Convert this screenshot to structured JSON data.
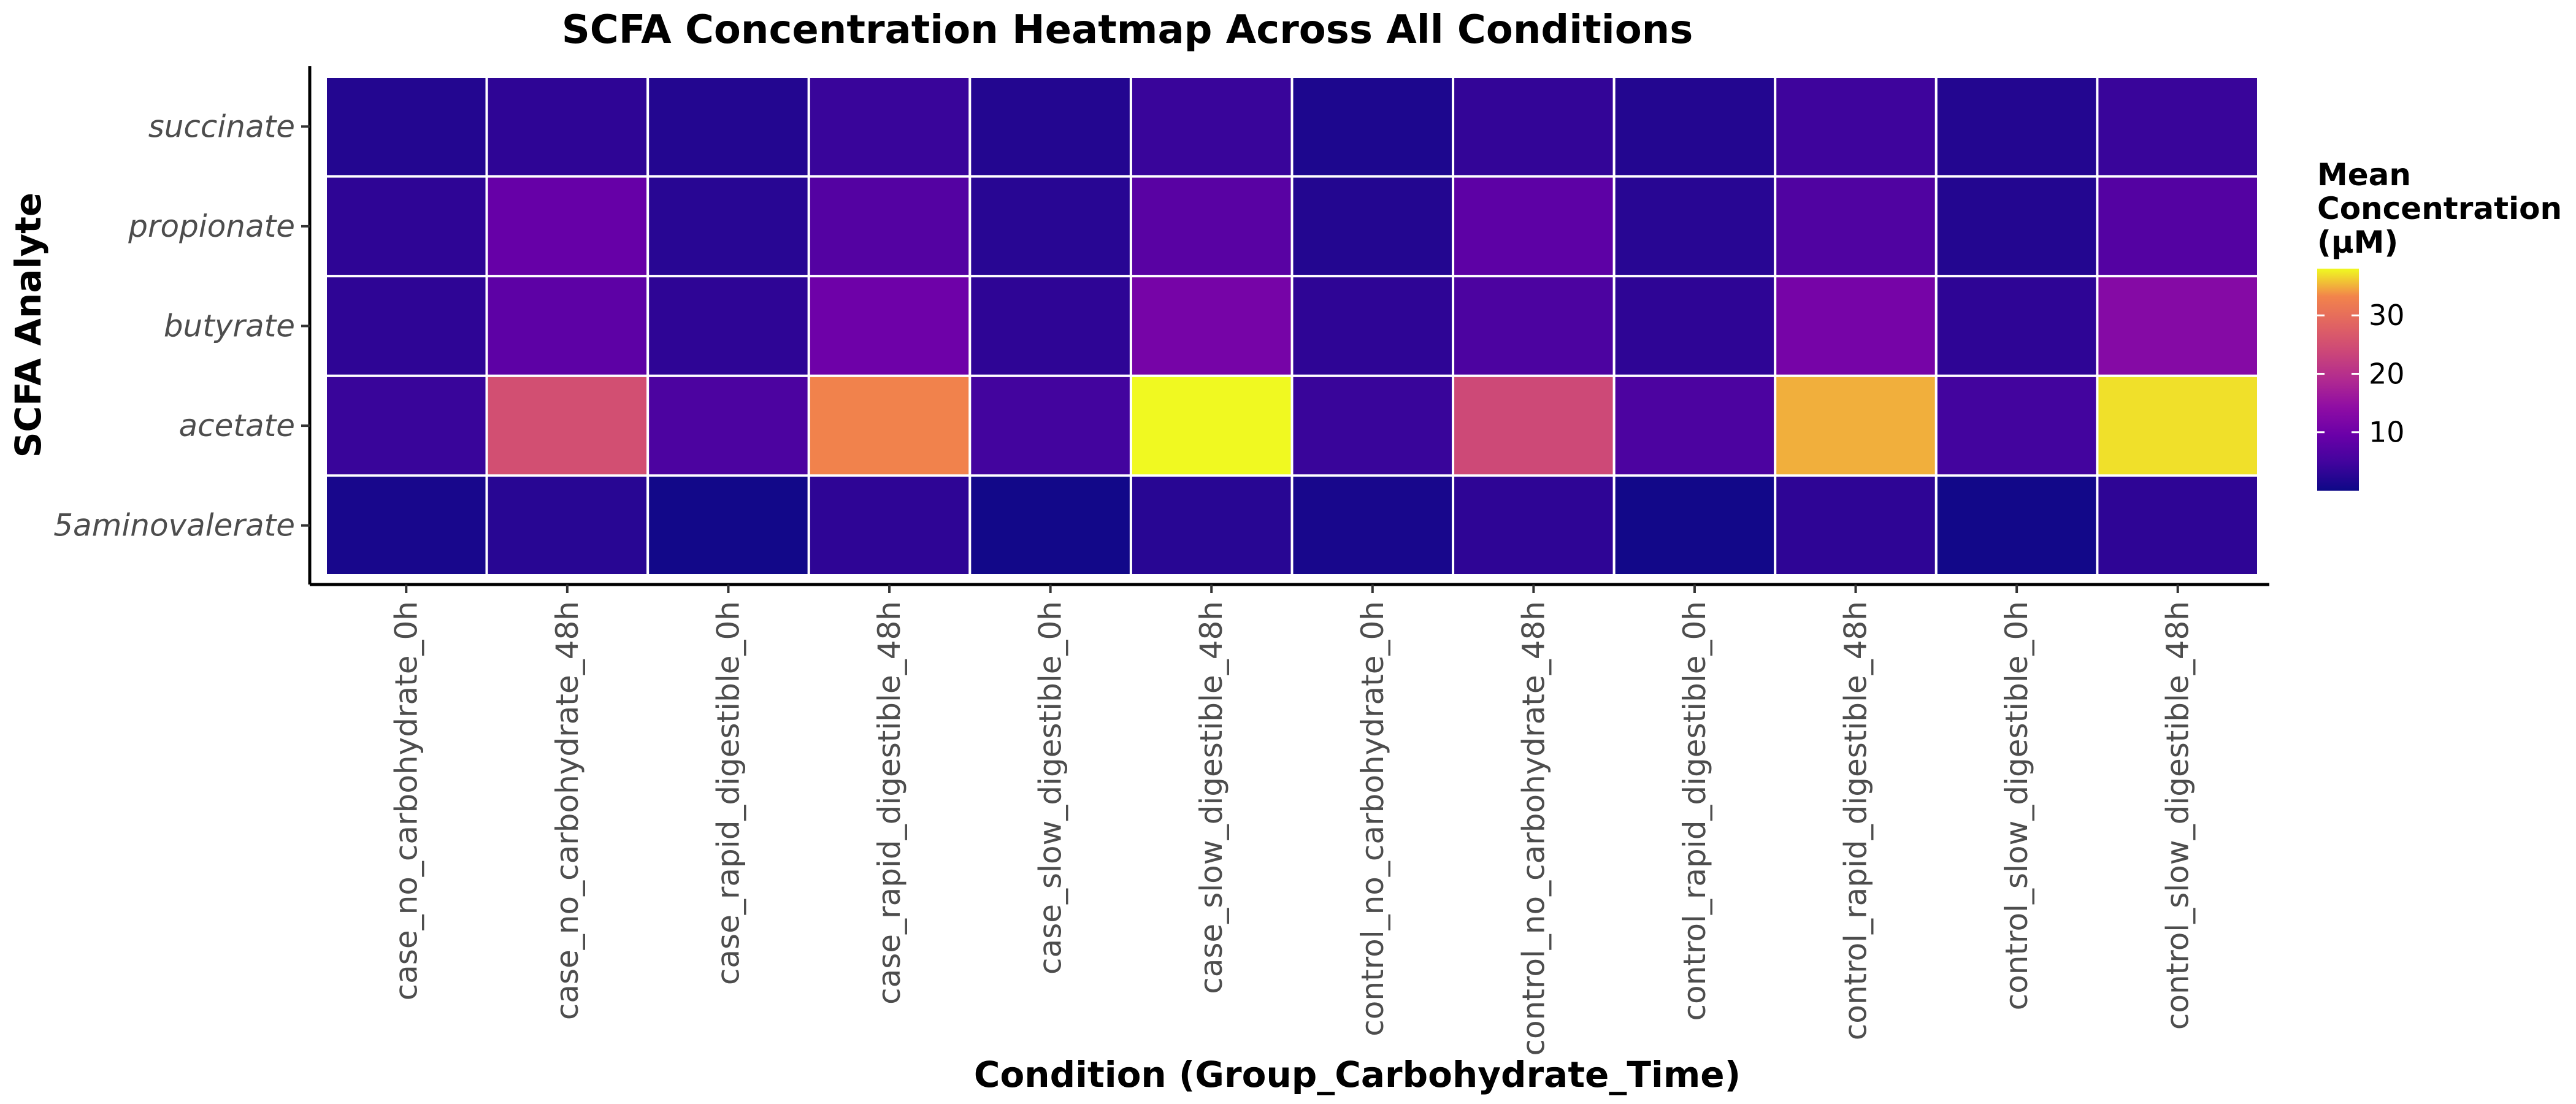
{
  "chart_data": {
    "type": "heatmap",
    "title": "SCFA Concentration Heatmap Across All Conditions",
    "xlabel": "Condition (Group_Carbohydrate_Time)",
    "ylabel": "SCFA Analyte",
    "x": [
      "case_no_carbohydrate_0h",
      "case_no_carbohydrate_48h",
      "case_rapid_digestible_0h",
      "case_rapid_digestible_48h",
      "case_slow_digestible_0h",
      "case_slow_digestible_48h",
      "control_no_carbohydrate_0h",
      "control_no_carbohydrate_48h",
      "control_rapid_digestible_0h",
      "control_rapid_digestible_48h",
      "control_slow_digestible_0h",
      "control_slow_digestible_48h"
    ],
    "y": [
      "succinate",
      "propionate",
      "butyrate",
      "acetate",
      "5aminovalerate"
    ],
    "values": [
      [
        2,
        3,
        2,
        4,
        2,
        4,
        1.5,
        3.5,
        2,
        4.5,
        2,
        4
      ],
      [
        3,
        9,
        2.5,
        7,
        2.5,
        7.5,
        2,
        8,
        2.5,
        6.5,
        2,
        7
      ],
      [
        3,
        8,
        3,
        10,
        3,
        11,
        3,
        6,
        3,
        11,
        3,
        13
      ],
      [
        4,
        25,
        6,
        33,
        5,
        38,
        4,
        24,
        6,
        35,
        5,
        37
      ],
      [
        1,
        2.5,
        0.5,
        3,
        0.5,
        2.5,
        1,
        3,
        0.5,
        3,
        0.5,
        3
      ]
    ],
    "colorbar": {
      "title": [
        "Mean",
        "Concentration",
        "(µM)"
      ],
      "ticks": [
        10,
        20,
        30
      ],
      "range": [
        0,
        38
      ],
      "colormap": "plasma"
    },
    "grid": false,
    "legend_position": "right"
  }
}
